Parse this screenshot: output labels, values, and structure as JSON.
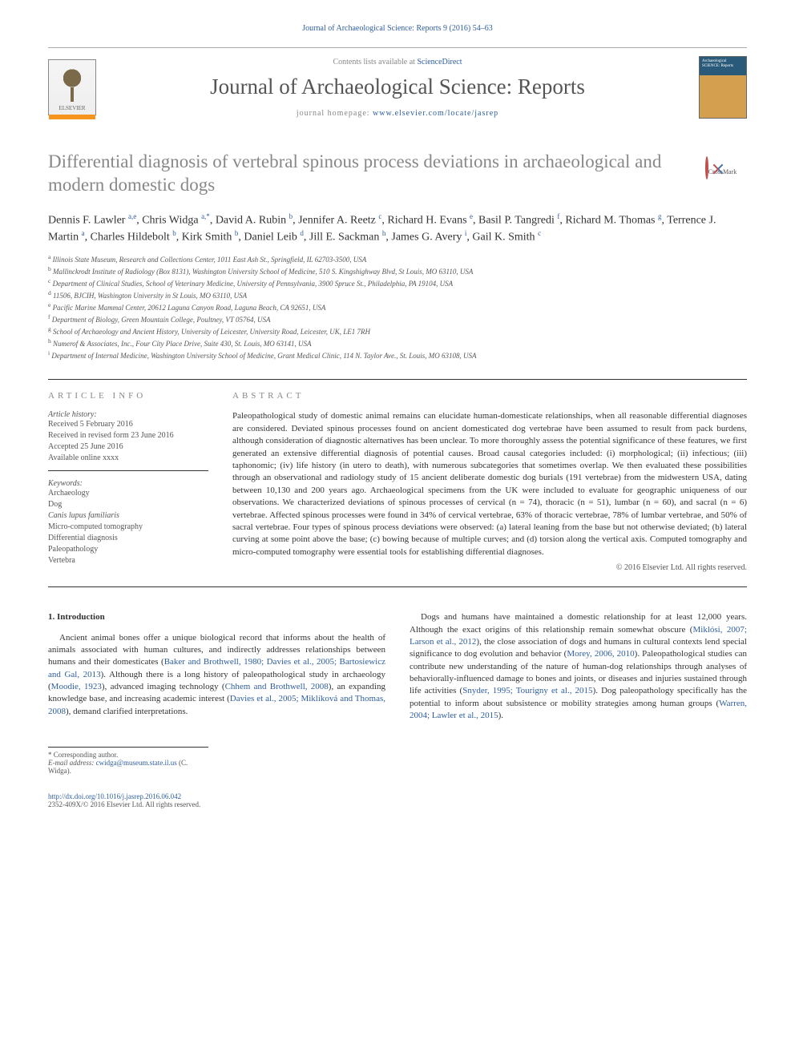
{
  "top_citation": "Journal of Archaeological Science: Reports 9 (2016) 54–63",
  "header": {
    "sciencedirect_prefix": "Contents lists available at ",
    "sciencedirect_link": "ScienceDirect",
    "journal_name": "Journal of Archaeological Science: Reports",
    "homepage_prefix": "journal homepage: ",
    "homepage_link": "www.elsevier.com/locate/jasrep",
    "publisher": "ELSEVIER"
  },
  "crossmark_label": "CrossMark",
  "article": {
    "title": "Differential diagnosis of vertebral spinous process deviations in archaeological and modern domestic dogs",
    "authors_html": "Dennis F. Lawler <sup>a,e</sup>, Chris Widga <sup>a,*</sup>, David A. Rubin <sup>b</sup>, Jennifer A. Reetz <sup>c</sup>, Richard H. Evans <sup>e</sup>, Basil P. Tangredi <sup>f</sup>, Richard M. Thomas <sup>g</sup>, Terrence J. Martin <sup>a</sup>, Charles Hildebolt <sup>b</sup>, Kirk Smith <sup>b</sup>, Daniel Leib <sup>d</sup>, Jill E. Sackman <sup>h</sup>, James G. Avery <sup>i</sup>, Gail K. Smith <sup>c</sup>",
    "affiliations": [
      {
        "sup": "a",
        "text": "Illinois State Museum, Research and Collections Center, 1011 East Ash St., Springfield, IL 62703-3500, USA"
      },
      {
        "sup": "b",
        "text": "Mallinckrodt Institute of Radiology (Box 8131), Washington University School of Medicine, 510 S. Kingshighway Blvd, St Louis, MO 63110, USA"
      },
      {
        "sup": "c",
        "text": "Department of Clinical Studies, School of Veterinary Medicine, University of Pennsylvania, 3900 Spruce St., Philadelphia, PA 19104, USA"
      },
      {
        "sup": "d",
        "text": "11506, BJCIH, Washington University in St Louis, MO 63110, USA"
      },
      {
        "sup": "e",
        "text": "Pacific Marine Mammal Center, 20612 Laguna Canyon Road, Laguna Beach, CA 92651, USA"
      },
      {
        "sup": "f",
        "text": "Department of Biology, Green Mountain College, Poultney, VT 05764, USA"
      },
      {
        "sup": "g",
        "text": "School of Archaeology and Ancient History, University of Leicester, University Road, Leicester, UK, LE1 7RH"
      },
      {
        "sup": "h",
        "text": "Numerof & Associates, Inc., Four City Place Drive, Suite 430, St. Louis, MO 63141, USA"
      },
      {
        "sup": "i",
        "text": "Department of Internal Medicine, Washington University School of Medicine, Grant Medical Clinic, 114 N. Taylor Ave., St. Louis, MO 63108, USA"
      }
    ]
  },
  "info": {
    "heading": "ARTICLE INFO",
    "history_label": "Article history:",
    "history": [
      "Received 5 February 2016",
      "Received in revised form 23 June 2016",
      "Accepted 25 June 2016",
      "Available online xxxx"
    ],
    "keywords_label": "Keywords:",
    "keywords": [
      "Archaeology",
      "Dog",
      "Canis lupus familiaris",
      "Micro-computed tomography",
      "Differential diagnosis",
      "Paleopathology",
      "Vertebra"
    ]
  },
  "abstract": {
    "heading": "ABSTRACT",
    "text": "Paleopathological study of domestic animal remains can elucidate human-domesticate relationships, when all reasonable differential diagnoses are considered. Deviated spinous processes found on ancient domesticated dog vertebrae have been assumed to result from pack burdens, although consideration of diagnostic alternatives has been unclear. To more thoroughly assess the potential significance of these features, we first generated an extensive differential diagnosis of potential causes. Broad causal categories included: (i) morphological; (ii) infectious; (iii) taphonomic; (iv) life history (in utero to death), with numerous subcategories that sometimes overlap. We then evaluated these possibilities through an observational and radiology study of 15 ancient deliberate domestic dog burials (191 vertebrae) from the midwestern USA, dating between 10,130 and 200 years ago. Archaeological specimens from the UK were included to evaluate for geographic uniqueness of our observations. We characterized deviations of spinous processes of cervical (n = 74), thoracic (n = 51), lumbar (n = 60), and sacral (n = 6) vertebrae. Affected spinous processes were found in 34% of cervical vertebrae, 63% of thoracic vertebrae, 78% of lumbar vertebrae, and 50% of sacral vertebrae. Four types of spinous process deviations were observed: (a) lateral leaning from the base but not otherwise deviated; (b) lateral curving at some point above the base; (c) bowing because of multiple curves; and (d) torsion along the vertical axis. Computed tomography and micro-computed tomography were essential tools for establishing differential diagnoses.",
    "copyright": "© 2016 Elsevier Ltd. All rights reserved."
  },
  "body": {
    "section_heading": "1. Introduction",
    "p1_a": "Ancient animal bones offer a unique biological record that informs about the health of animals associated with human cultures, and indirectly addresses relationships between humans and their domesticates (",
    "p1_cite1": "Baker and Brothwell, 1980; Davies et al., 2005; Bartosiewicz and Gal, 2013",
    "p1_b": "). Although there is a long history of paleopathological study in archaeology (",
    "p1_cite2": "Moodie, 1923",
    "p1_c": "), advanced imaging technology (",
    "p1_cite3": "Chhem and Brothwell, 2008",
    "p1_d": "), an expanding knowledge base, and increasing academic interest (",
    "p1_cite4": "Davies et al., 2005; Miklíková and Thomas, 2008",
    "p1_e": "), demand clarified interpretations.",
    "p2_a": "Dogs and humans have maintained a domestic relationship for at least 12,000 years. Although the exact origins of this relationship remain somewhat obscure (",
    "p2_cite1": "Miklósi, 2007; Larson et al., 2012",
    "p2_b": "), the close association of dogs and humans in cultural contexts lend special significance to dog evolution and behavior (",
    "p2_cite2": "Morey, 2006, 2010",
    "p2_c": "). Paleopathological studies can contribute new understanding of the nature of human-dog relationships through analyses of behaviorally-influenced damage to bones and joints, or diseases and injuries sustained through life activities (",
    "p2_cite3": "Snyder, 1995; Tourigny et al., 2015",
    "p2_d": "). Dog paleopathology specifically has the potential to inform about subsistence or mobility strategies among human groups (",
    "p2_cite4": "Warren, 2004; Lawler et al., 2015",
    "p2_e": ")."
  },
  "footnote": {
    "corresponding": "* Corresponding author.",
    "email_label": "E-mail address: ",
    "email": "cwidga@museum.state.il.us",
    "email_name": " (C. Widga)."
  },
  "footer": {
    "doi": "http://dx.doi.org/10.1016/j.jasrep.2016.06.042",
    "issn_line": "2352-409X/© 2016 Elsevier Ltd. All rights reserved."
  },
  "colors": {
    "link": "#2e5ea0",
    "orange": "#f7941d",
    "heading_gray": "#888888",
    "text": "#333333"
  }
}
